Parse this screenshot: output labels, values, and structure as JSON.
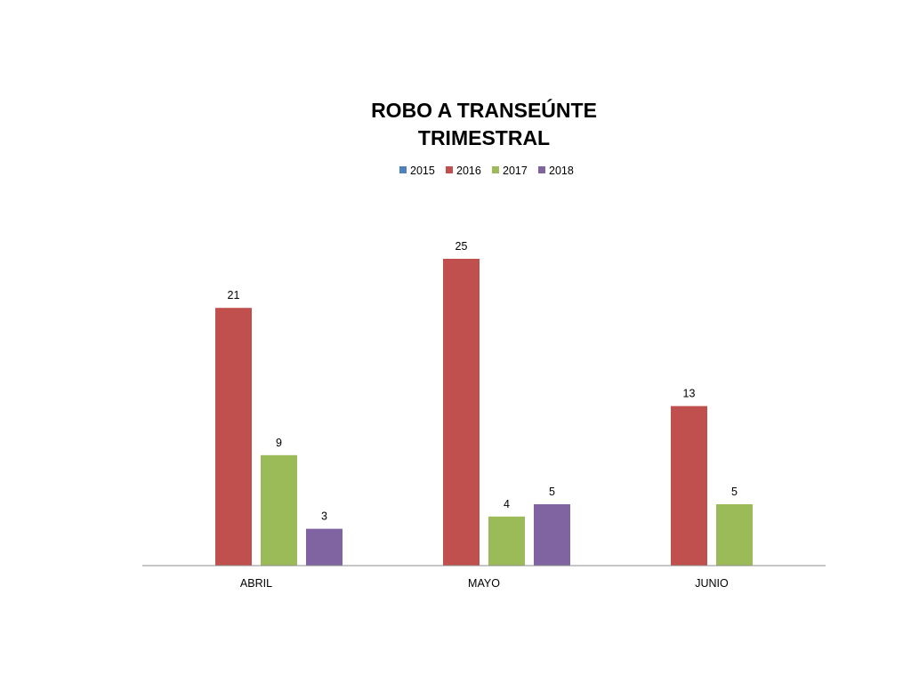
{
  "chart_data": {
    "type": "bar",
    "title_lines": [
      "ROBO A TRANSEÚNTE",
      "TRIMESTRAL"
    ],
    "categories": [
      "ABRIL",
      "MAYO",
      "JUNIO"
    ],
    "series": [
      {
        "name": "2015",
        "color": "#4F81BD",
        "values": [
          null,
          null,
          null
        ]
      },
      {
        "name": "2016",
        "color": "#C0504D",
        "values": [
          21,
          25,
          13
        ]
      },
      {
        "name": "2017",
        "color": "#9BBB59",
        "values": [
          9,
          4,
          5
        ]
      },
      {
        "name": "2018",
        "color": "#8064A2",
        "values": [
          3,
          5,
          null
        ]
      }
    ],
    "xlabel": "",
    "ylabel": "",
    "ylim": [
      0,
      30
    ],
    "legend_position": "top",
    "grid": false,
    "y_axis_visible": false,
    "data_labels": true
  }
}
